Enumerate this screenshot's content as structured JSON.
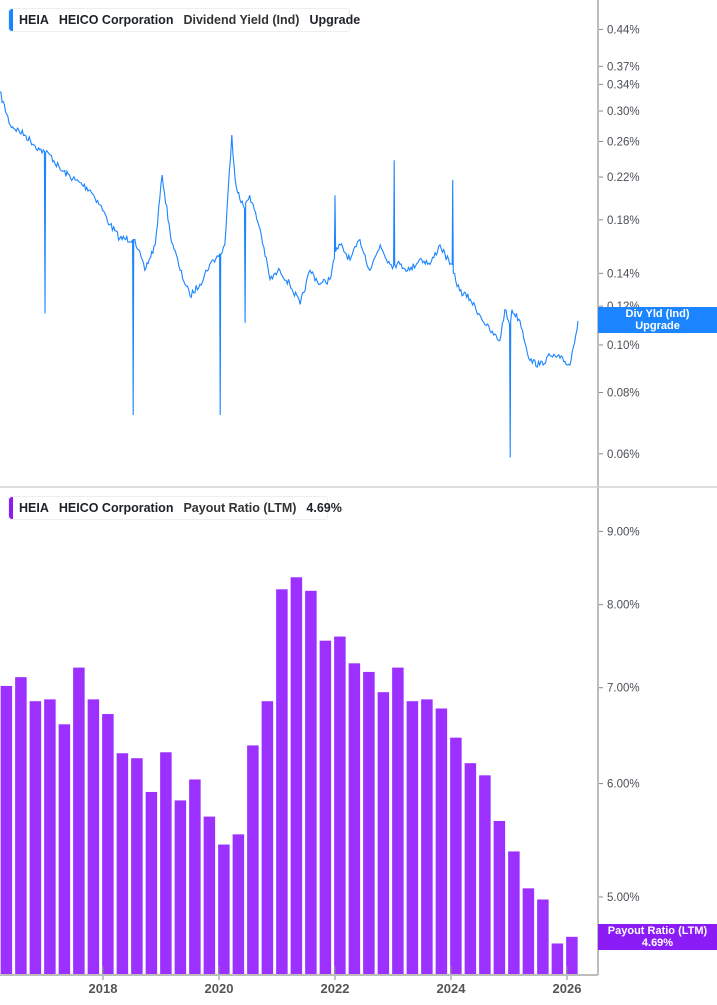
{
  "colors": {
    "yield": "#1a85ff",
    "payout": "#9b30ff",
    "payout_tag": "#8b1cf5",
    "yield_tag": "#1a85ff"
  },
  "top_legend": {
    "ticker": "HEIA",
    "company": "HEICO Corporation",
    "metric": "Dividend Yield (Ind)",
    "value": "Upgrade"
  },
  "bottom_legend": {
    "ticker": "HEIA",
    "company": "HEICO Corporation",
    "metric": "Payout Ratio (LTM)",
    "value": "4.69%"
  },
  "top_tag": {
    "line1": "Div Yld (Ind)",
    "line2": "Upgrade"
  },
  "bottom_tag": {
    "line1": "Payout Ratio (LTM)",
    "line2": "4.69%"
  },
  "chart_data": [
    {
      "type": "line",
      "series_name": "Dividend Yield (Ind)",
      "y_scale": "log",
      "y_unit": "%",
      "y_ticks": [
        "0.44%",
        "0.37%",
        "0.34%",
        "0.30%",
        "0.26%",
        "0.22%",
        "0.18%",
        "0.14%",
        "0.12%",
        "0.10%",
        "0.08%",
        "0.06%"
      ],
      "y_tick_values": [
        0.44,
        0.37,
        0.34,
        0.3,
        0.26,
        0.22,
        0.18,
        0.14,
        0.12,
        0.1,
        0.08,
        0.06
      ],
      "x": [
        2016.22,
        2016.4,
        2016.65,
        2016.91,
        2016.99,
        2017.0,
        2017.01,
        2017.09,
        2017.26,
        2017.52,
        2017.78,
        2017.95,
        2018.12,
        2018.29,
        2018.51,
        2018.52,
        2018.53,
        2018.55,
        2018.72,
        2018.9,
        2019.02,
        2019.16,
        2019.33,
        2019.5,
        2019.67,
        2019.84,
        2020.01,
        2020.02,
        2020.03,
        2020.1,
        2020.22,
        2020.28,
        2020.36,
        2020.44,
        2020.45,
        2020.46,
        2020.53,
        2020.71,
        2020.88,
        2021.05,
        2021.22,
        2021.4,
        2021.57,
        2021.74,
        2021.91,
        2021.99,
        2022.0,
        2022.01,
        2022.09,
        2022.26,
        2022.43,
        2022.6,
        2022.78,
        2022.95,
        2023.01,
        2023.02,
        2023.03,
        2023.12,
        2023.29,
        2023.47,
        2023.64,
        2023.81,
        2023.98,
        2024.02,
        2024.03,
        2024.04,
        2024.15,
        2024.33,
        2024.5,
        2024.67,
        2024.84,
        2024.93,
        2025.01,
        2025.02,
        2025.03,
        2025.05,
        2025.19,
        2025.36,
        2025.53,
        2025.71,
        2025.88,
        2026.05,
        2026.19
      ],
      "y": [
        0.328,
        0.281,
        0.268,
        0.25,
        0.248,
        0.116,
        0.247,
        0.244,
        0.228,
        0.217,
        0.207,
        0.193,
        0.176,
        0.165,
        0.164,
        0.072,
        0.164,
        0.164,
        0.142,
        0.16,
        0.222,
        0.168,
        0.142,
        0.126,
        0.133,
        0.146,
        0.153,
        0.072,
        0.153,
        0.16,
        0.268,
        0.217,
        0.198,
        0.19,
        0.111,
        0.195,
        0.202,
        0.172,
        0.136,
        0.142,
        0.133,
        0.121,
        0.142,
        0.133,
        0.136,
        0.15,
        0.202,
        0.155,
        0.16,
        0.149,
        0.164,
        0.142,
        0.16,
        0.146,
        0.145,
        0.238,
        0.146,
        0.146,
        0.142,
        0.15,
        0.146,
        0.16,
        0.146,
        0.146,
        0.217,
        0.14,
        0.129,
        0.124,
        0.115,
        0.107,
        0.102,
        0.118,
        0.11,
        0.059,
        0.112,
        0.118,
        0.112,
        0.093,
        0.091,
        0.095,
        0.094,
        0.091,
        0.112
      ]
    },
    {
      "type": "bar",
      "series_name": "Payout Ratio (LTM)",
      "y_scale": "log",
      "y_unit": "%",
      "y_ticks": [
        "9.00%",
        "8.00%",
        "7.00%",
        "6.00%",
        "5.00%"
      ],
      "y_tick_values": [
        9,
        8,
        7,
        6,
        5
      ],
      "x_ticks": [
        "2018",
        "2020",
        "2022",
        "2024",
        "2026"
      ],
      "x_tick_values": [
        2018,
        2020,
        2022,
        2024,
        2026
      ],
      "x": [
        2016.33,
        2016.58,
        2016.83,
        2017.08,
        2017.33,
        2017.58,
        2017.83,
        2018.08,
        2018.33,
        2018.58,
        2018.83,
        2019.08,
        2019.33,
        2019.58,
        2019.83,
        2020.08,
        2020.33,
        2020.58,
        2020.83,
        2021.08,
        2021.33,
        2021.58,
        2021.83,
        2022.08,
        2022.33,
        2022.58,
        2022.83,
        2023.08,
        2023.33,
        2023.58,
        2023.83,
        2024.08,
        2024.33,
        2024.58,
        2024.83,
        2025.08,
        2025.33,
        2025.58,
        2025.83,
        2026.08
      ],
      "values": [
        7.02,
        7.12,
        6.85,
        6.87,
        6.6,
        7.23,
        6.87,
        6.71,
        6.3,
        6.25,
        5.92,
        6.31,
        5.84,
        6.04,
        5.69,
        5.44,
        5.53,
        6.38,
        6.85,
        8.2,
        8.36,
        8.18,
        7.55,
        7.6,
        7.28,
        7.18,
        6.95,
        7.23,
        6.85,
        6.87,
        6.77,
        6.46,
        6.2,
        6.08,
        5.65,
        5.38,
        5.07,
        4.98,
        4.64,
        4.69
      ]
    }
  ]
}
